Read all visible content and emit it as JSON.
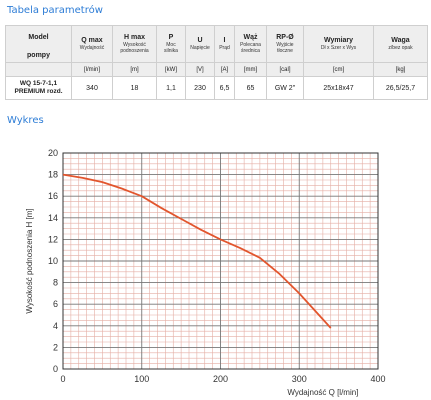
{
  "table_title": "Tabela parametrów",
  "chart_section_title": "Wykres",
  "table": {
    "model_header": [
      "Model",
      "pompy"
    ],
    "columns": [
      {
        "main": "Q max",
        "sub": [
          "Wydajność"
        ],
        "unit": "[l/min]"
      },
      {
        "main": "H max",
        "sub": [
          "Wysokość",
          "podnoszenia"
        ],
        "unit": "[m]"
      },
      {
        "main": "P",
        "sub": [
          "Moc",
          "silnika"
        ],
        "unit": "[kW]"
      },
      {
        "main": "U",
        "sub": [
          "Napięcie"
        ],
        "unit": "[V]"
      },
      {
        "main": "I",
        "sub": [
          "Prąd"
        ],
        "unit": "[A]"
      },
      {
        "main": "Wąż",
        "sub": [
          "Polecana",
          "średnica"
        ],
        "unit": "[mm]"
      },
      {
        "main": "RP-Ø",
        "sub": [
          "Wyjście",
          "tłoczne"
        ],
        "unit": "[cal]"
      },
      {
        "main": "Wymiary",
        "sub": [
          "Dł x Szer x Wys"
        ],
        "unit": "[cm]"
      },
      {
        "main": "Waga",
        "sub": [
          "z/bez opak"
        ],
        "unit": "[kg]"
      }
    ],
    "model_lines": [
      "WQ 15-7-1,1",
      "PREMIUM rozd."
    ],
    "values": [
      "340",
      "18",
      "1,1",
      "230",
      "6,5",
      "65",
      "GW 2\"",
      "25x18x47",
      "26,5/25,7"
    ]
  },
  "chart_data": {
    "type": "line",
    "xlabel": "Wydajność Q [l/min]",
    "ylabel": "Wysokość podnoszenia H [m]",
    "xlim": [
      0,
      400
    ],
    "ylim": [
      0,
      20
    ],
    "xticks": [
      "0",
      "100",
      "200",
      "300",
      "400"
    ],
    "yticks": [
      "0",
      "2",
      "4",
      "6",
      "8",
      "10",
      "12",
      "14",
      "16",
      "18",
      "20"
    ],
    "grid": true,
    "series": [
      {
        "color": "#e2552d",
        "x": [
          0,
          25,
          50,
          75,
          100,
          125,
          150,
          175,
          200,
          225,
          250,
          275,
          300,
          325,
          340
        ],
        "y": [
          18,
          17.7,
          17.3,
          16.7,
          16,
          14.9,
          13.9,
          12.9,
          12,
          11.2,
          10.3,
          8.8,
          7,
          5,
          3.8
        ]
      }
    ],
    "grid_color": "#e4aea4",
    "major_grid_color": "#777777"
  }
}
